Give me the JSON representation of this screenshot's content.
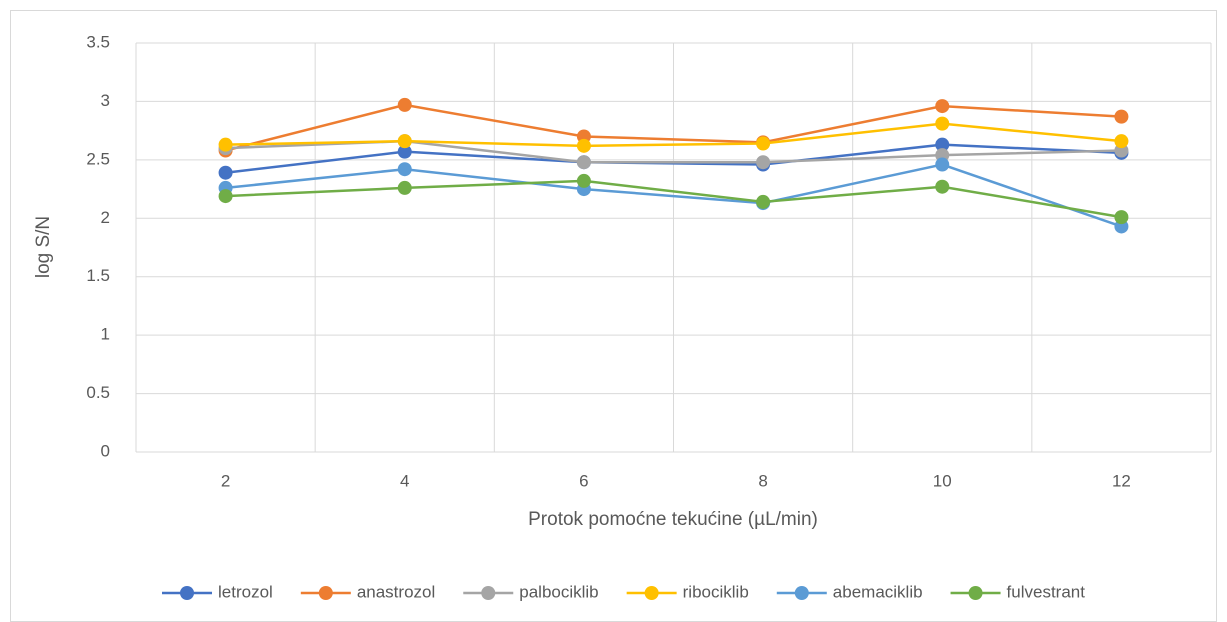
{
  "chart_data": {
    "type": "line",
    "categories": [
      "2",
      "4",
      "6",
      "8",
      "10",
      "12"
    ],
    "x_label": "Protok pomoćne tekućine (µL/min)",
    "y_label": "log S/N",
    "ylim": [
      0,
      3.5
    ],
    "yticks": [
      0,
      0.5,
      1,
      1.5,
      2,
      2.5,
      3,
      3.5
    ],
    "grid": true,
    "legend": "bottom",
    "series": [
      {
        "name": "letrozol",
        "color": "#4472c4",
        "values": [
          2.39,
          2.57,
          2.48,
          2.46,
          2.63,
          2.56
        ]
      },
      {
        "name": "anastrozol",
        "color": "#ed7d31",
        "values": [
          2.58,
          2.97,
          2.7,
          2.65,
          2.96,
          2.87
        ]
      },
      {
        "name": "palbociklib",
        "color": "#a5a5a5",
        "values": [
          2.6,
          2.66,
          2.48,
          2.48,
          2.54,
          2.58
        ]
      },
      {
        "name": "ribociklib",
        "color": "#ffc000",
        "values": [
          2.63,
          2.66,
          2.62,
          2.64,
          2.81,
          2.66
        ]
      },
      {
        "name": "abemaciklib",
        "color": "#5b9bd5",
        "values": [
          2.26,
          2.42,
          2.25,
          2.13,
          2.46,
          1.93
        ]
      },
      {
        "name": "fulvestrant",
        "color": "#70ad47",
        "values": [
          2.19,
          2.26,
          2.32,
          2.14,
          2.27,
          2.01
        ]
      }
    ]
  }
}
